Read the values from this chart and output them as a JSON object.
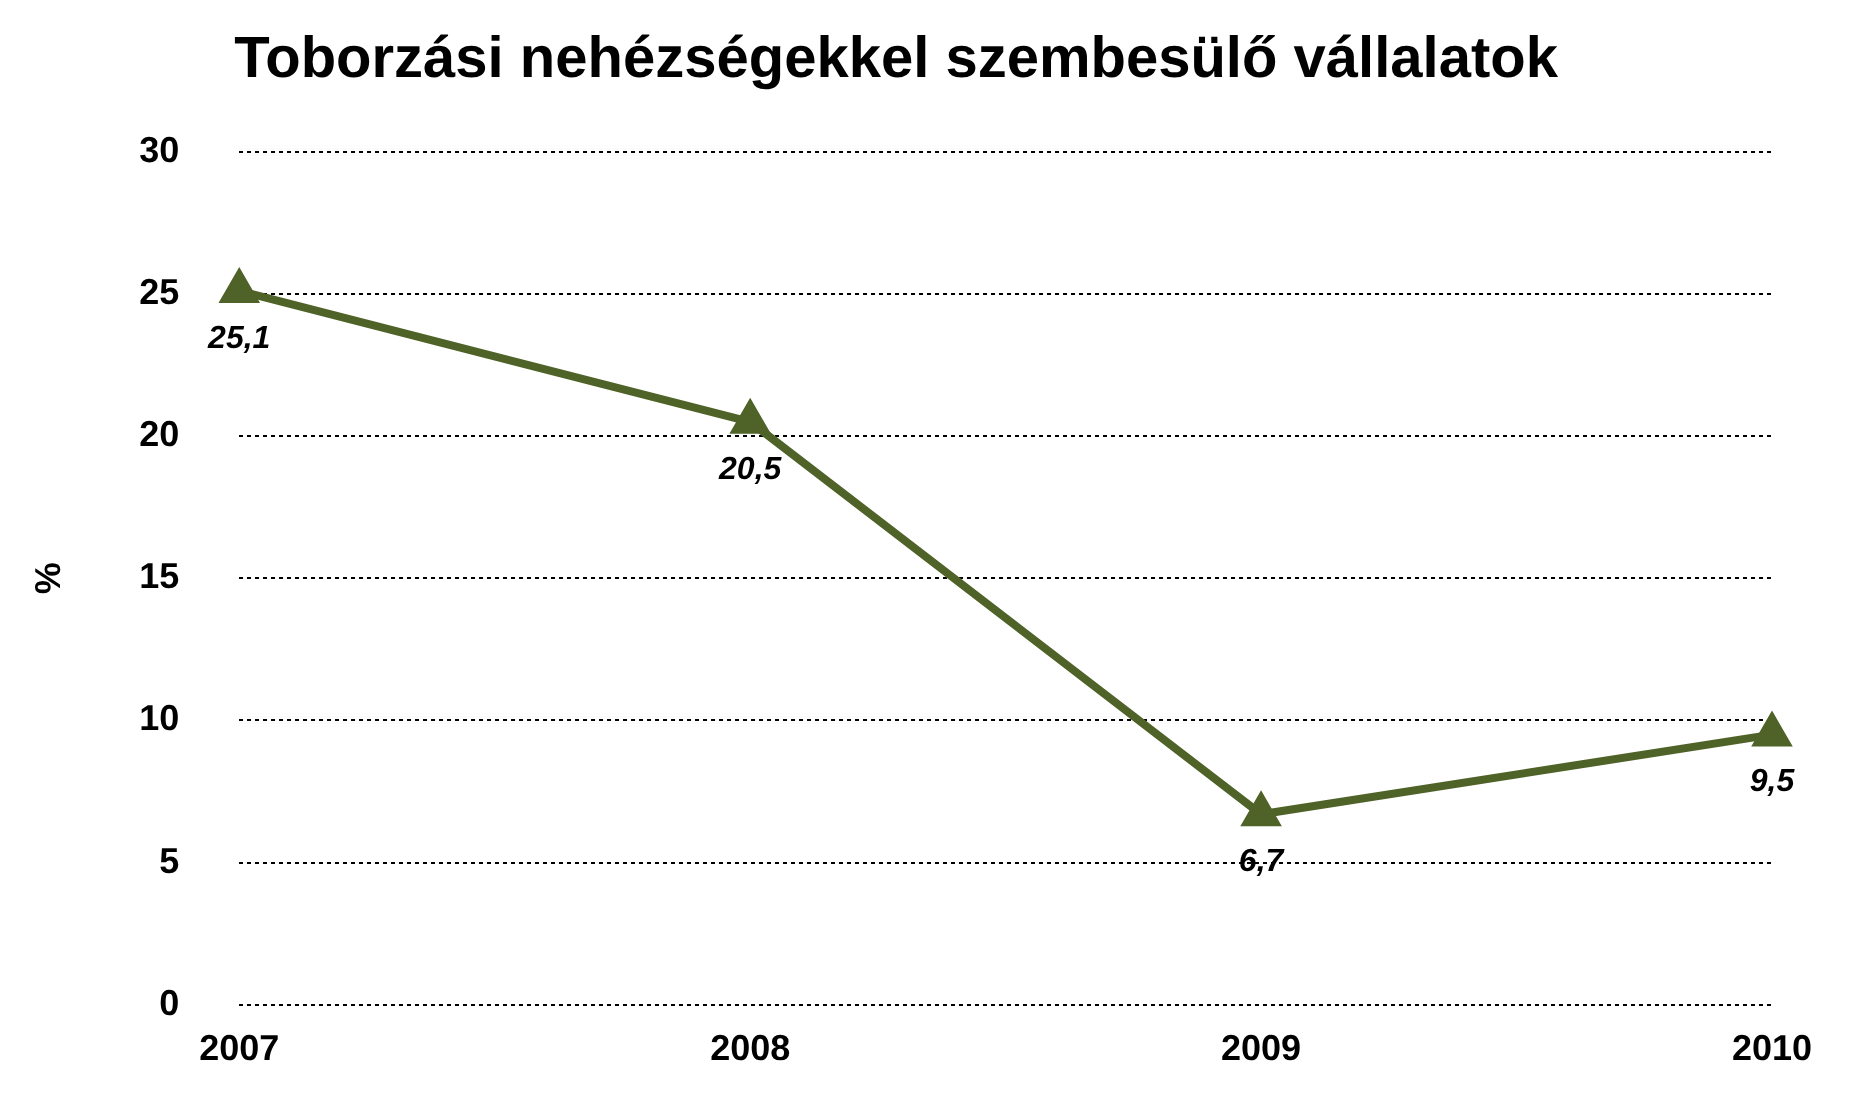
{
  "chart_data": {
    "type": "line",
    "title": "Toborzási nehézségekkel szembesülő vállalatok",
    "ylabel": "%",
    "categories": [
      "2007",
      "2008",
      "2009",
      "2010"
    ],
    "series": [
      {
        "color": "#4f6228",
        "values": [
          25.1,
          20.5,
          6.7,
          9.5
        ],
        "value_labels": [
          "25,1",
          "20,5",
          "6,7",
          "9,5"
        ]
      }
    ],
    "ylim": [
      0,
      30
    ],
    "yticks": [
      0,
      5,
      10,
      15,
      20,
      25,
      30
    ],
    "grid": "y",
    "legend": false,
    "marker": "triangle",
    "line_style": "solid"
  }
}
